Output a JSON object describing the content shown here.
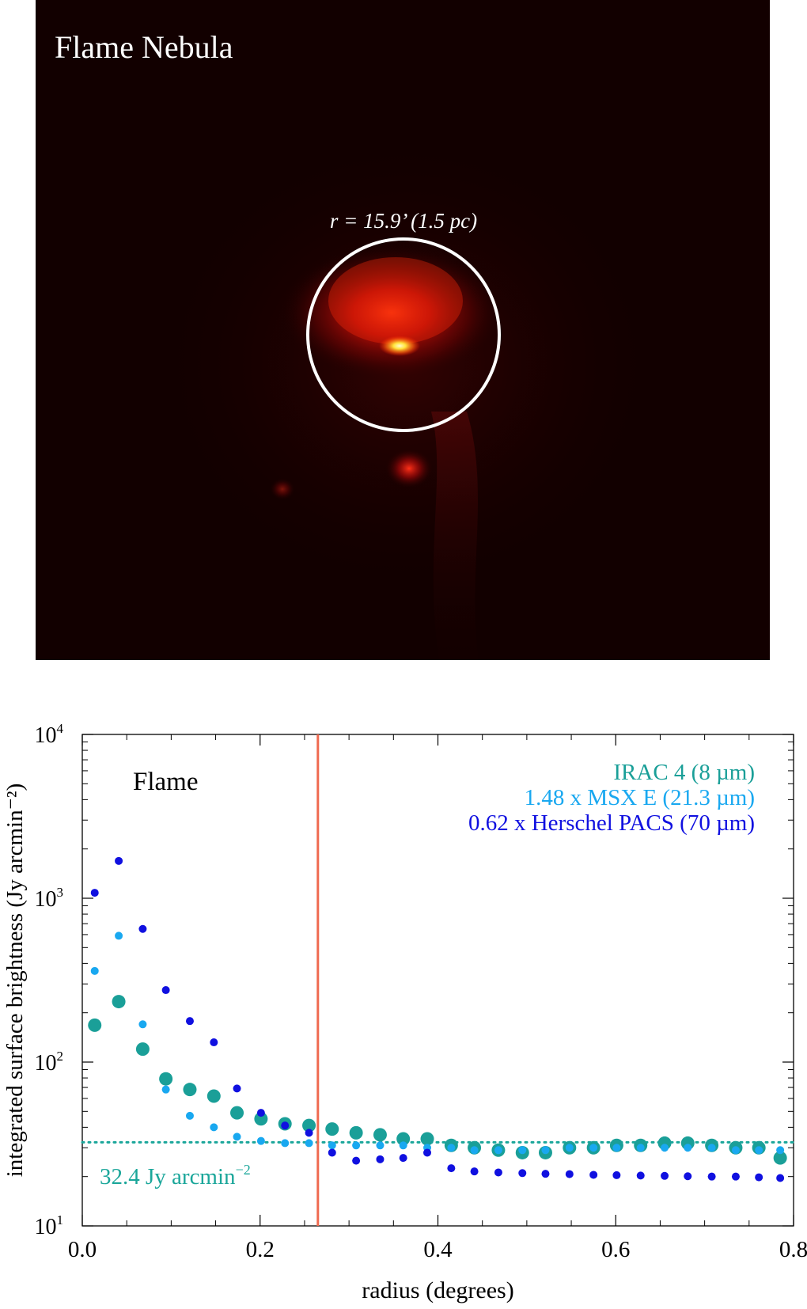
{
  "image_panel": {
    "title": "Flame Nebula",
    "circle_label": "r = 15.9’ (1.5 pc)"
  },
  "chart_data": {
    "type": "scatter",
    "panel_label": "Flame",
    "xlabel": "radius (degrees)",
    "ylabel": "integrated surface brightness (Jy arcmin⁻²)",
    "xlim": [
      0.0,
      0.8
    ],
    "ylim": [
      10,
      10000
    ],
    "y_scale": "log",
    "x_ticks": [
      "0.0",
      "0.2",
      "0.4",
      "0.6",
      "0.8"
    ],
    "y_ticks": [
      {
        "base": "10",
        "exp": "1",
        "value": 10
      },
      {
        "base": "10",
        "exp": "2",
        "value": 100
      },
      {
        "base": "10",
        "exp": "3",
        "value": 1000
      },
      {
        "base": "10",
        "exp": "4",
        "value": 10000
      }
    ],
    "legend_position": "top-right",
    "vertical_line": {
      "x": 0.265,
      "color": "#f06a50"
    },
    "horizontal_line": {
      "y": 32.4,
      "color": "#1aa69a",
      "style": "dotted"
    },
    "annotation": {
      "text": "32.4 Jy arcmin",
      "sup": "−2"
    },
    "series": [
      {
        "name": "IRAC 4 (8 µm)",
        "color": "#1a9f98",
        "marker": "large",
        "x": [
          0.014,
          0.041,
          0.068,
          0.094,
          0.121,
          0.148,
          0.174,
          0.201,
          0.228,
          0.255,
          0.281,
          0.308,
          0.335,
          0.361,
          0.388,
          0.415,
          0.441,
          0.468,
          0.495,
          0.521,
          0.548,
          0.575,
          0.601,
          0.628,
          0.655,
          0.681,
          0.708,
          0.735,
          0.761,
          0.785
        ],
        "y": [
          168,
          234,
          120,
          79,
          68,
          62,
          49,
          45,
          42,
          41,
          39,
          37,
          36,
          34,
          34,
          31,
          30,
          29,
          28,
          28,
          30,
          30,
          31,
          31,
          32,
          32,
          31,
          30,
          30,
          26
        ]
      },
      {
        "name": "1.48 x MSX E (21.3 µm)",
        "color": "#19a8f0",
        "marker": "medium",
        "x": [
          0.014,
          0.041,
          0.068,
          0.094,
          0.121,
          0.148,
          0.174,
          0.201,
          0.228,
          0.255,
          0.281,
          0.308,
          0.335,
          0.361,
          0.388,
          0.415,
          0.441,
          0.468,
          0.495,
          0.521,
          0.548,
          0.575,
          0.601,
          0.628,
          0.655,
          0.681,
          0.708,
          0.735,
          0.761,
          0.785
        ],
        "y": [
          360,
          590,
          170,
          68,
          47,
          40,
          35,
          33,
          32,
          32,
          31,
          31,
          31,
          31,
          30,
          30,
          29,
          29,
          29,
          29,
          30,
          30,
          30,
          30,
          30,
          30,
          30,
          29,
          29,
          29
        ]
      },
      {
        "name": "0.62 x Herschel PACS (70 µm)",
        "color": "#1010e0",
        "marker": "medium",
        "x": [
          0.014,
          0.041,
          0.068,
          0.094,
          0.121,
          0.148,
          0.174,
          0.201,
          0.228,
          0.255,
          0.281,
          0.308,
          0.335,
          0.361,
          0.388,
          0.415,
          0.441,
          0.468,
          0.495,
          0.521,
          0.548,
          0.575,
          0.601,
          0.628,
          0.655,
          0.681,
          0.708,
          0.735,
          0.761,
          0.785
        ],
        "y": [
          1080,
          1690,
          650,
          275,
          178,
          132,
          69,
          49,
          41,
          37,
          28,
          25,
          25.5,
          26,
          28,
          22.5,
          21.5,
          21.2,
          21,
          20.8,
          20.7,
          20.5,
          20.4,
          20.3,
          20.2,
          20.1,
          20,
          20,
          19.8,
          19.6
        ]
      }
    ]
  }
}
